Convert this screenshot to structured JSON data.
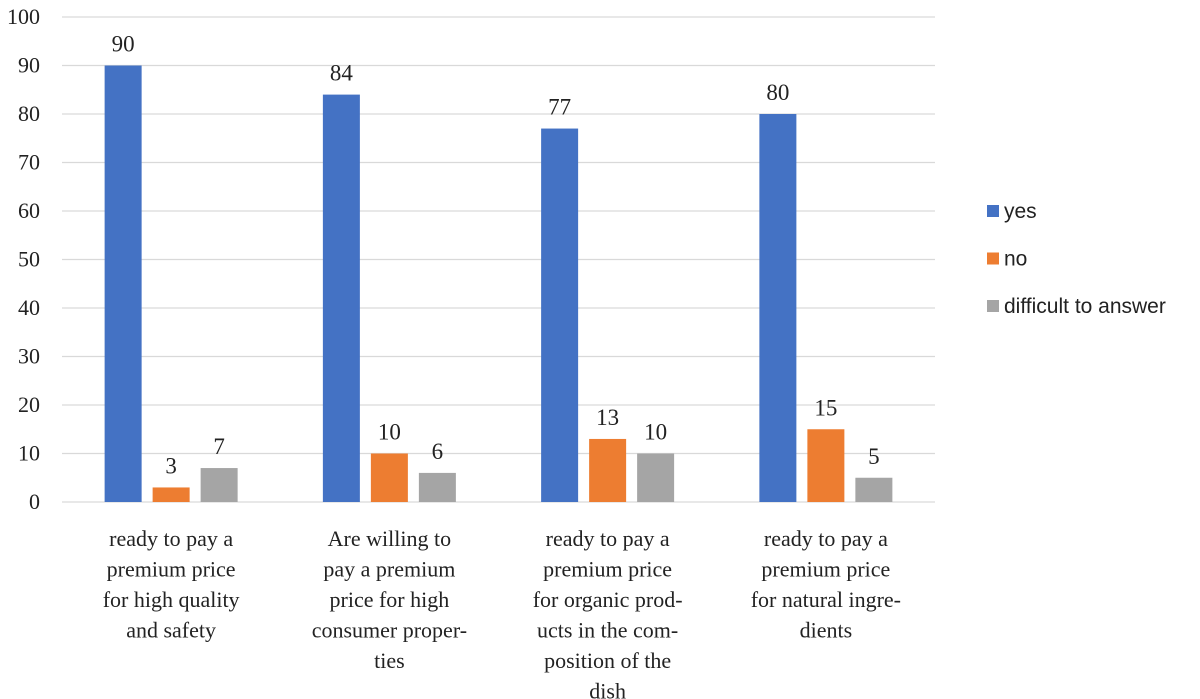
{
  "chart_data": {
    "type": "bar",
    "categories": [
      [
        "ready to pay a",
        "premium price",
        "for high quality",
        "and safety"
      ],
      [
        "Are willing to",
        "pay a premium",
        "price for high",
        "consumer proper-",
        "ties"
      ],
      [
        "ready to pay a",
        "premium price",
        "for organic prod-",
        "ucts in the com-",
        "position of the",
        "dish"
      ],
      [
        "ready to pay a",
        "premium price",
        "for natural ingre-",
        "dients"
      ]
    ],
    "series": [
      {
        "name": "yes",
        "color": "#4472C4",
        "values": [
          90,
          84,
          77,
          80
        ]
      },
      {
        "name": "no",
        "color": "#ED7D31",
        "values": [
          3,
          10,
          13,
          15
        ]
      },
      {
        "name": "difficult to answer",
        "color": "#A5A5A5",
        "values": [
          7,
          6,
          10,
          5
        ]
      }
    ],
    "y_ticks": [
      "0",
      "10",
      "20",
      "30",
      "40",
      "50",
      "60",
      "70",
      "80",
      "90",
      "100"
    ],
    "title": "",
    "xlabel": "",
    "ylabel": "",
    "ylim": [
      0,
      100
    ],
    "grid": true,
    "legend_position": "right"
  }
}
